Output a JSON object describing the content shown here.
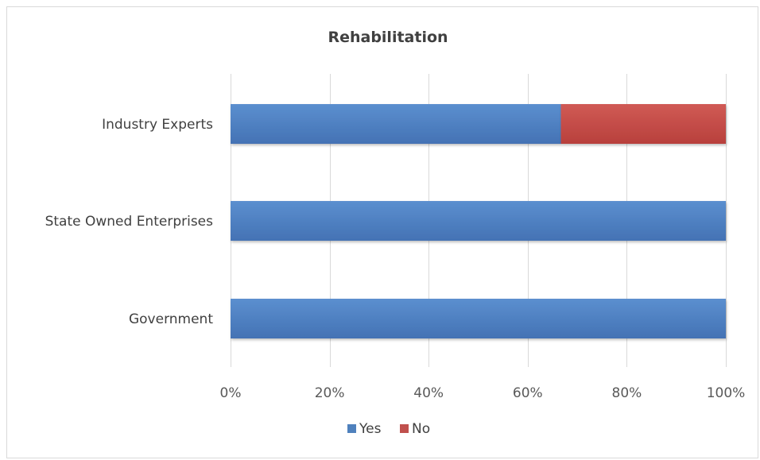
{
  "chart_data": {
    "type": "bar",
    "orientation": "horizontal",
    "stacked": "percent",
    "title": "Rehabilitation",
    "categories": [
      "Industry Experts",
      "State Owned Enterprises",
      "Government"
    ],
    "series": [
      {
        "name": "Yes",
        "values": [
          66.7,
          100,
          100
        ],
        "color": "#4f81bd"
      },
      {
        "name": "No",
        "values": [
          33.3,
          0,
          0
        ],
        "color": "#c0504d"
      }
    ],
    "xlim": [
      0,
      100
    ],
    "xticks": [
      "0%",
      "20%",
      "40%",
      "60%",
      "80%",
      "100%"
    ],
    "grid": true,
    "legend": "bottom"
  }
}
